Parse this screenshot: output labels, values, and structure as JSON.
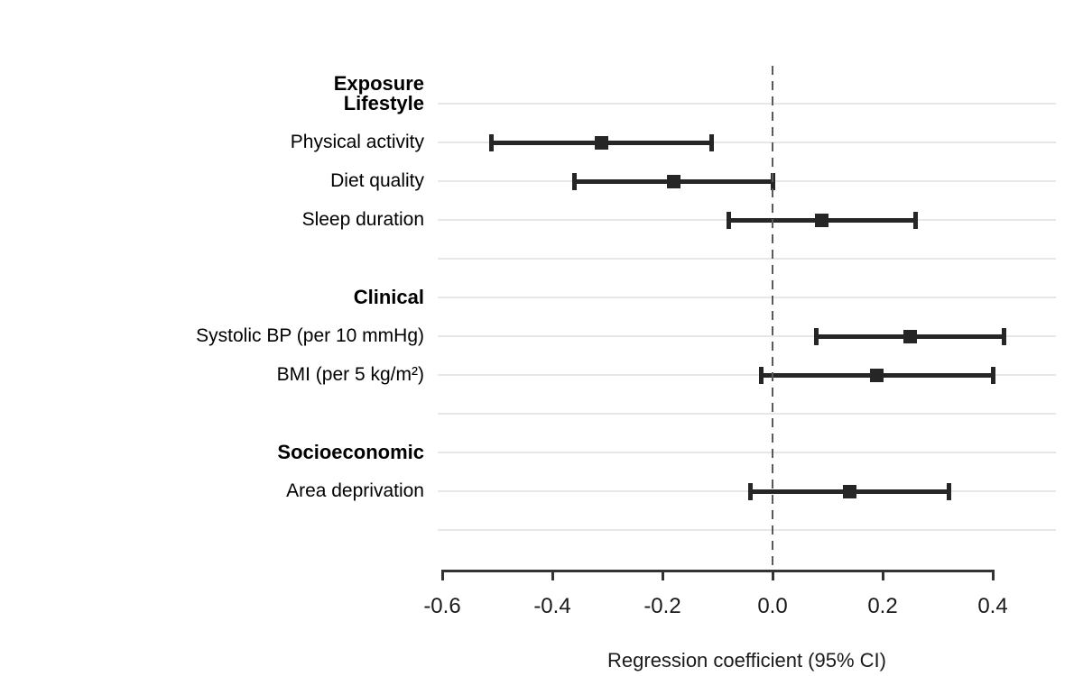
{
  "figure": {
    "exposure_header": "Exposure"
  },
  "colors": {
    "marker_and_ci": "#262626",
    "gridline": "#e7e7e7",
    "zero_dash_line": "#595959",
    "axis": "#333333",
    "text": "#000000",
    "background": "#ffffff"
  },
  "chart_data": {
    "type": "scatter",
    "variant": "forest-plot-horizontal-ci",
    "title": "",
    "xlabel": "Regression coefficient (95% CI)",
    "ylabel": "",
    "xlim": [
      -0.61,
      0.52
    ],
    "grid": "horizontal-light-gray-per-row",
    "zero_reference_line": {
      "x": 0.0,
      "style": "dashed",
      "color": "#595959"
    },
    "xaxis": {
      "ticks": [
        -0.6,
        -0.4,
        -0.2,
        0.0,
        0.2,
        0.4
      ],
      "tick_labels": [
        "-0.6",
        "-0.4",
        "-0.2",
        "0.0",
        "0.2",
        "0.4"
      ]
    },
    "column_header": "Exposure",
    "rows": [
      {
        "kind": "header",
        "label": "Lifestyle"
      },
      {
        "kind": "item",
        "label": "Physical activity",
        "estimate": -0.31,
        "ci_low": -0.51,
        "ci_high": -0.11
      },
      {
        "kind": "item",
        "label": "Diet quality",
        "estimate": -0.18,
        "ci_low": -0.36,
        "ci_high": 0.0
      },
      {
        "kind": "item",
        "label": "Sleep duration",
        "estimate": 0.09,
        "ci_low": -0.08,
        "ci_high": 0.26
      },
      {
        "kind": "spacer",
        "label": ""
      },
      {
        "kind": "header",
        "label": "Clinical"
      },
      {
        "kind": "item",
        "label": "Systolic BP (per 10 mmHg)",
        "estimate": 0.25,
        "ci_low": 0.08,
        "ci_high": 0.42
      },
      {
        "kind": "item",
        "label": "BMI (per 5 kg/m²)",
        "estimate": 0.19,
        "ci_low": -0.02,
        "ci_high": 0.4
      },
      {
        "kind": "spacer",
        "label": ""
      },
      {
        "kind": "header",
        "label": "Socioeconomic"
      },
      {
        "kind": "item",
        "label": "Area deprivation",
        "estimate": 0.14,
        "ci_low": -0.04,
        "ci_high": 0.32
      },
      {
        "kind": "spacer",
        "label": ""
      }
    ]
  }
}
